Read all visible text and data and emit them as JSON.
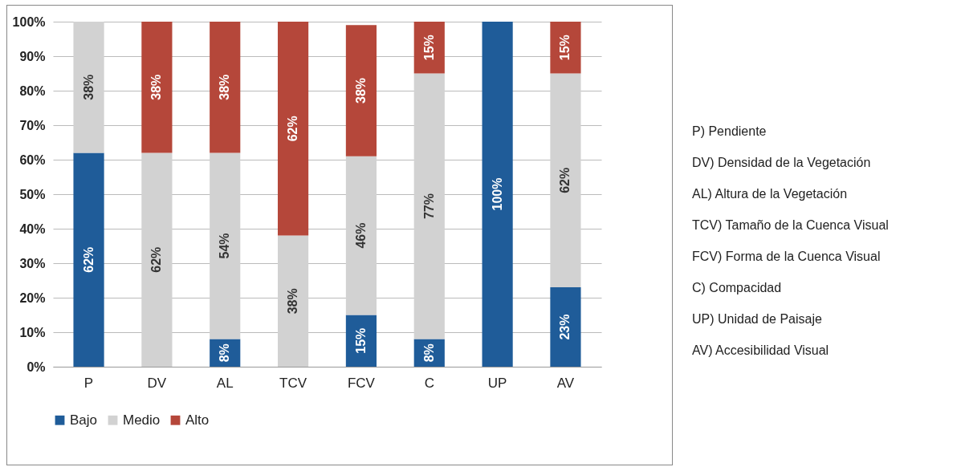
{
  "chart_data": {
    "type": "bar",
    "stacked": true,
    "categories": [
      "P",
      "DV",
      "AL",
      "TCV",
      "FCV",
      "C",
      "UP",
      "AV"
    ],
    "series": [
      {
        "name": "Bajo",
        "color": "#1f5c99",
        "values": [
          62,
          0,
          8,
          0,
          15,
          8,
          100,
          23
        ],
        "value_labels": [
          "62%",
          null,
          "8%",
          null,
          "15%",
          "8%",
          "100%",
          "23%"
        ]
      },
      {
        "name": "Medio",
        "color": "#d2d2d2",
        "values": [
          38,
          62,
          54,
          38,
          46,
          77,
          0,
          62
        ],
        "value_labels": [
          "38%",
          "62%",
          "54%",
          "38%",
          "46%",
          "77%",
          null,
          "62%"
        ]
      },
      {
        "name": "Alto",
        "color": "#b5473a",
        "values": [
          0,
          38,
          38,
          62,
          38,
          15,
          0,
          15
        ],
        "value_labels": [
          null,
          "38%",
          "38%",
          "62%",
          "38%",
          "15%",
          null,
          "15%"
        ]
      }
    ],
    "ylim": [
      0,
      100
    ],
    "yticks": [
      {
        "value": 0,
        "label": "0%"
      },
      {
        "value": 10,
        "label": "10%"
      },
      {
        "value": 20,
        "label": "20%"
      },
      {
        "value": 30,
        "label": "30%"
      },
      {
        "value": 40,
        "label": "40%"
      },
      {
        "value": 50,
        "label": "50%"
      },
      {
        "value": 60,
        "label": "60%"
      },
      {
        "value": 70,
        "label": "70%"
      },
      {
        "value": 80,
        "label": "80%"
      },
      {
        "value": 90,
        "label": "90%"
      },
      {
        "value": 100,
        "label": "100%"
      }
    ],
    "grid": "y",
    "legend": "bottom",
    "annotations": [
      "P) Pendiente",
      "DV) Densidad de la Vegetación",
      "AL) Altura de la Vegetación",
      "TCV) Tamaño de la Cuenca Visual",
      "FCV) Forma de la Cuenca Visual",
      "C) Compacidad",
      "UP) Unidad de Paisaje",
      "AV) Accesibilidad Visual"
    ]
  }
}
